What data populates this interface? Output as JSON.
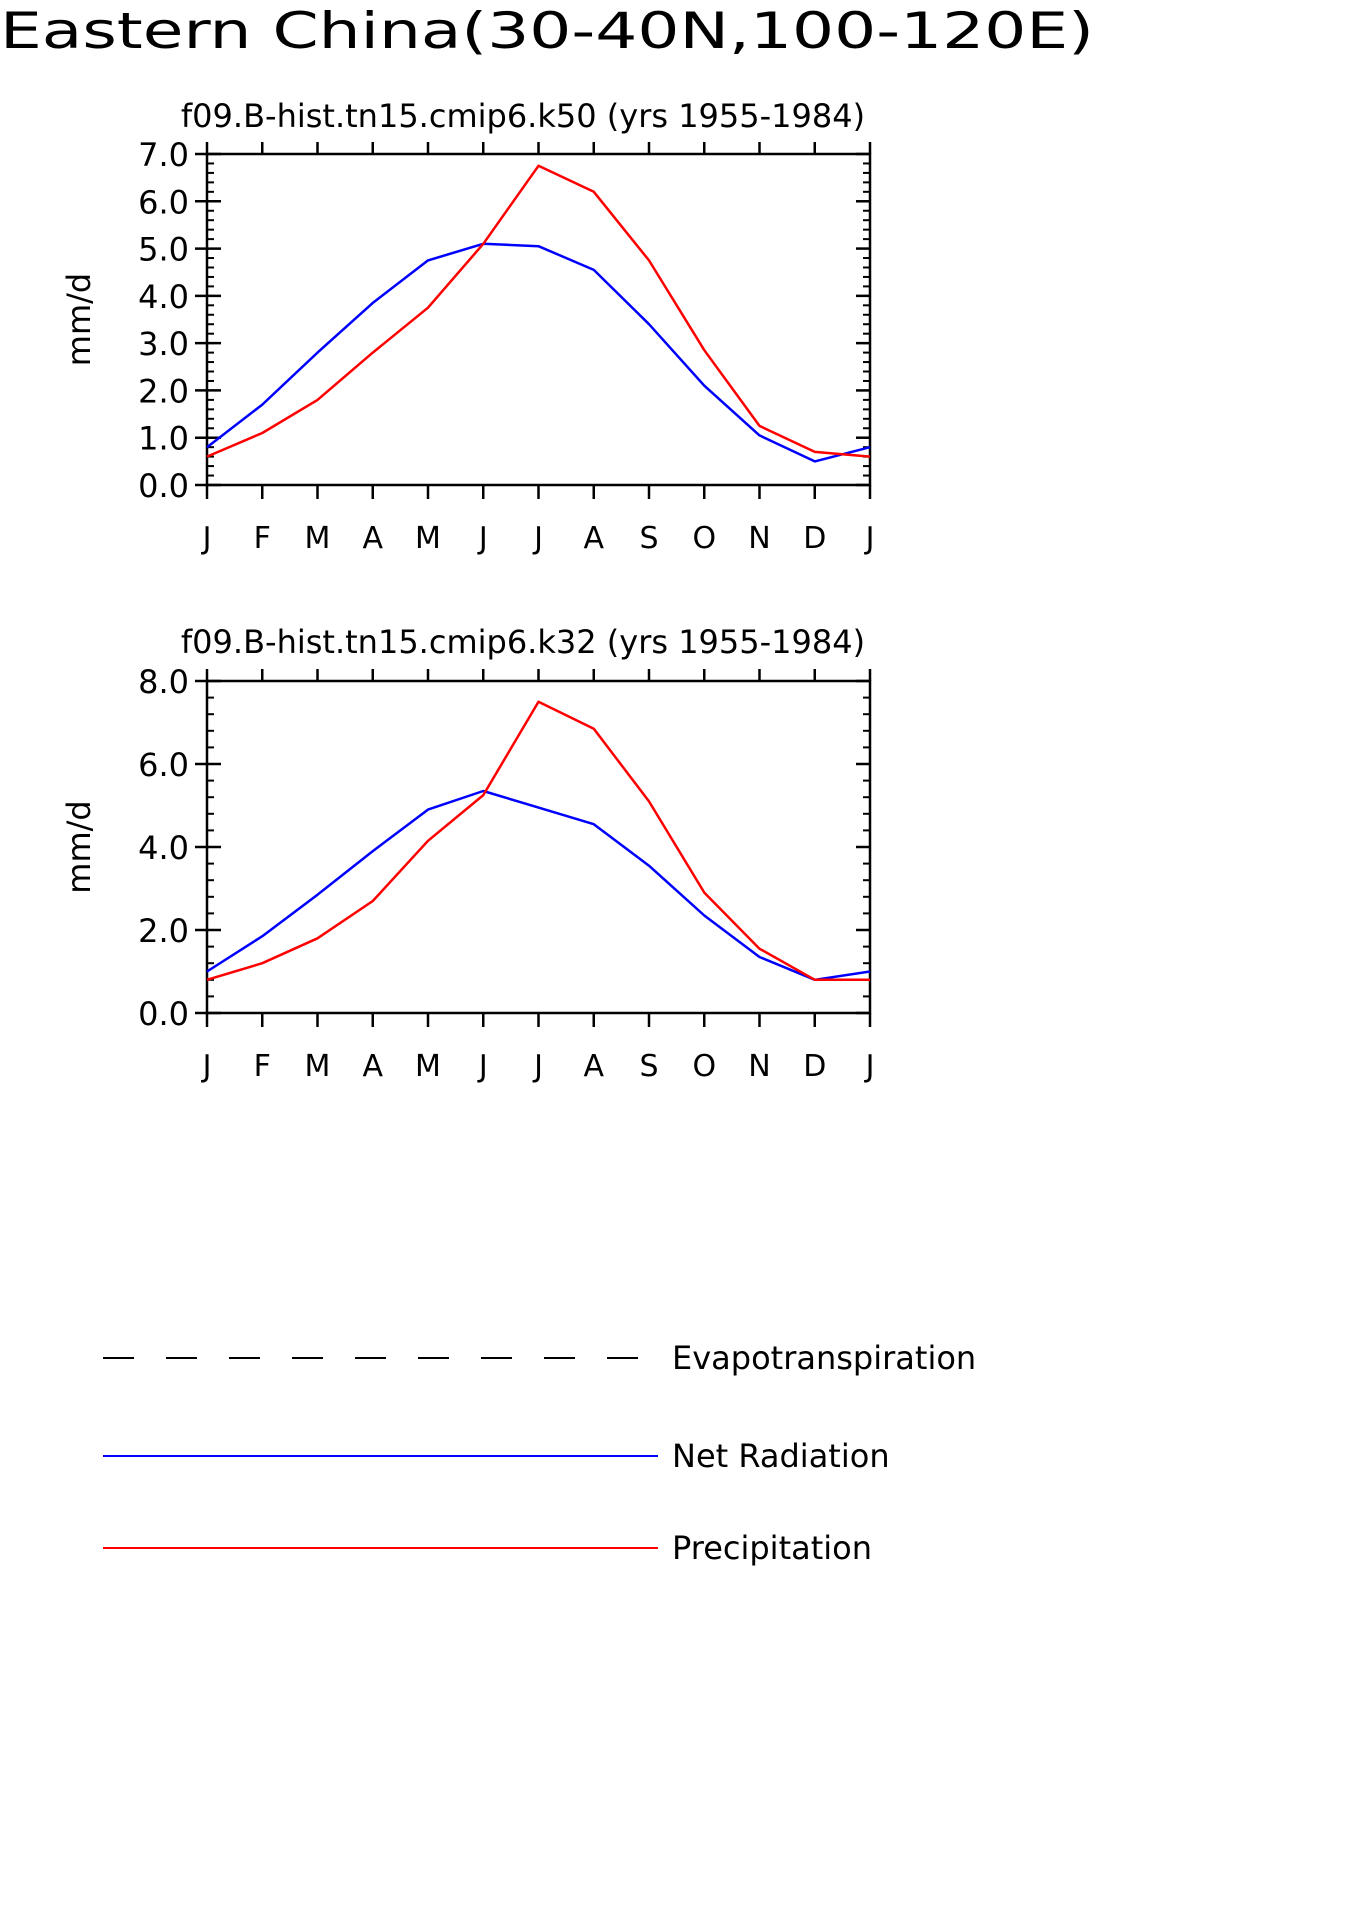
{
  "figure": {
    "title": "Eastern China(30-40N,100-120E)"
  },
  "colors": {
    "net_radiation": "#0000ff",
    "precipitation": "#ff0000",
    "evapotranspiration": "#000000",
    "axis": "#000000"
  },
  "legend": {
    "items": [
      {
        "label": "Evapotranspiration",
        "style": "dashed",
        "color": "#000000"
      },
      {
        "label": "Net Radiation",
        "style": "solid",
        "color": "#0000ff"
      },
      {
        "label": "Precipitation",
        "style": "solid",
        "color": "#ff0000"
      }
    ]
  },
  "chart_data": [
    {
      "type": "line",
      "title": "f09.B-hist.tn15.cmip6.k50 (yrs 1955-1984)",
      "xlabel": "",
      "ylabel": "mm/d",
      "categories": [
        "J",
        "F",
        "M",
        "A",
        "M",
        "J",
        "J",
        "A",
        "S",
        "O",
        "N",
        "D",
        "J"
      ],
      "ylim": [
        0,
        7
      ],
      "yticks": [
        0,
        1,
        2,
        3,
        4,
        5,
        6,
        7
      ],
      "ytick_labels": [
        "0.0",
        "1.0",
        "2.0",
        "3.0",
        "4.0",
        "5.0",
        "6.0",
        "7.0"
      ],
      "y_minor_step": 0.2,
      "grid": false,
      "series": [
        {
          "name": "Net Radiation",
          "color": "#0000ff",
          "values": [
            0.8,
            1.7,
            2.8,
            3.85,
            4.75,
            5.1,
            5.05,
            4.55,
            3.4,
            2.1,
            1.05,
            0.5,
            0.8
          ]
        },
        {
          "name": "Precipitation",
          "color": "#ff0000",
          "values": [
            0.6,
            1.1,
            1.8,
            2.8,
            3.75,
            5.1,
            6.75,
            6.2,
            4.75,
            2.85,
            1.25,
            0.7,
            0.6
          ]
        }
      ]
    },
    {
      "type": "line",
      "title": "f09.B-hist.tn15.cmip6.k32 (yrs 1955-1984)",
      "xlabel": "",
      "ylabel": "mm/d",
      "categories": [
        "J",
        "F",
        "M",
        "A",
        "M",
        "J",
        "J",
        "A",
        "S",
        "O",
        "N",
        "D",
        "J"
      ],
      "ylim": [
        0,
        8
      ],
      "yticks": [
        0,
        2,
        4,
        6,
        8
      ],
      "ytick_labels": [
        "0.0",
        "2.0",
        "4.0",
        "6.0",
        "8.0"
      ],
      "y_minor_step": 0.4,
      "grid": false,
      "series": [
        {
          "name": "Net Radiation",
          "color": "#0000ff",
          "values": [
            1.0,
            1.85,
            2.85,
            3.9,
            4.9,
            5.35,
            4.95,
            4.55,
            3.55,
            2.35,
            1.35,
            0.8,
            1.0
          ]
        },
        {
          "name": "Precipitation",
          "color": "#ff0000",
          "values": [
            0.8,
            1.2,
            1.8,
            2.7,
            4.15,
            5.25,
            7.5,
            6.85,
            5.1,
            2.9,
            1.55,
            0.8,
            0.8
          ]
        }
      ]
    }
  ]
}
